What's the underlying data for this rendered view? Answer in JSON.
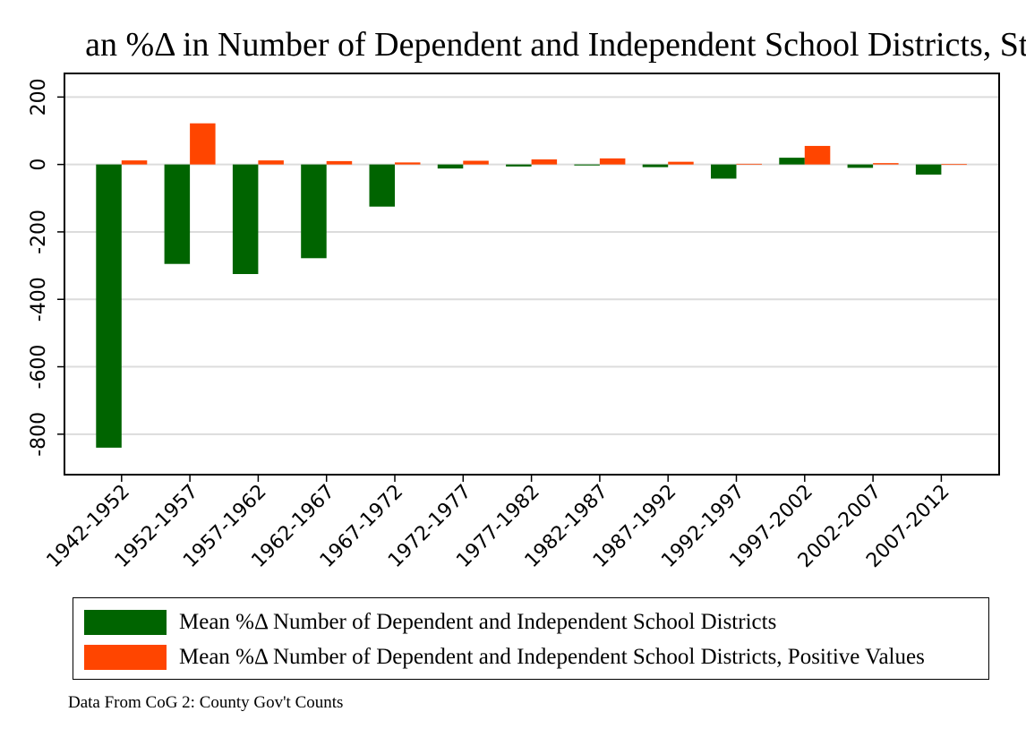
{
  "chart_data": {
    "type": "bar",
    "title": "Mean %Δ in Number of Dependent and Independent School Districts, State by Year",
    "title_visible": "an %Δ in Number of Dependent and Independent School Districts, State I",
    "categories": [
      "1942-1952",
      "1952-1957",
      "1957-1962",
      "1962-1967",
      "1967-1972",
      "1972-1977",
      "1977-1982",
      "1982-1987",
      "1987-1992",
      "1992-1997",
      "1997-2002",
      "2002-2007",
      "2007-2012"
    ],
    "series": [
      {
        "name": "Mean %Δ Number of Dependent and Independent School Districts",
        "color": "#006400",
        "values": [
          -840,
          -295,
          -325,
          -278,
          -125,
          -12,
          -6,
          -3,
          -8,
          -42,
          20,
          -10,
          -30
        ]
      },
      {
        "name": "Mean %Δ Number of Dependent and Independent School Districts, Positive Values",
        "color": "#ff4500",
        "values": [
          12,
          122,
          12,
          10,
          6,
          11,
          15,
          18,
          8,
          2,
          55,
          4,
          1
        ]
      }
    ],
    "ylim": [
      -920,
      270
    ],
    "yticks": [
      "200",
      "0",
      "-200",
      "-400",
      "-600",
      "-800"
    ],
    "grid": true,
    "legend_position": "bottom",
    "xlabel": "",
    "ylabel": ""
  },
  "legend": {
    "items": [
      {
        "label": "Mean %Δ Number of Dependent and Independent School Districts",
        "color": "#006400"
      },
      {
        "label": "Mean %Δ Number of Dependent and Independent School Districts, Positive Values",
        "color": "#ff4500"
      }
    ]
  },
  "note": "Data From CoG 2: County Gov't Counts"
}
